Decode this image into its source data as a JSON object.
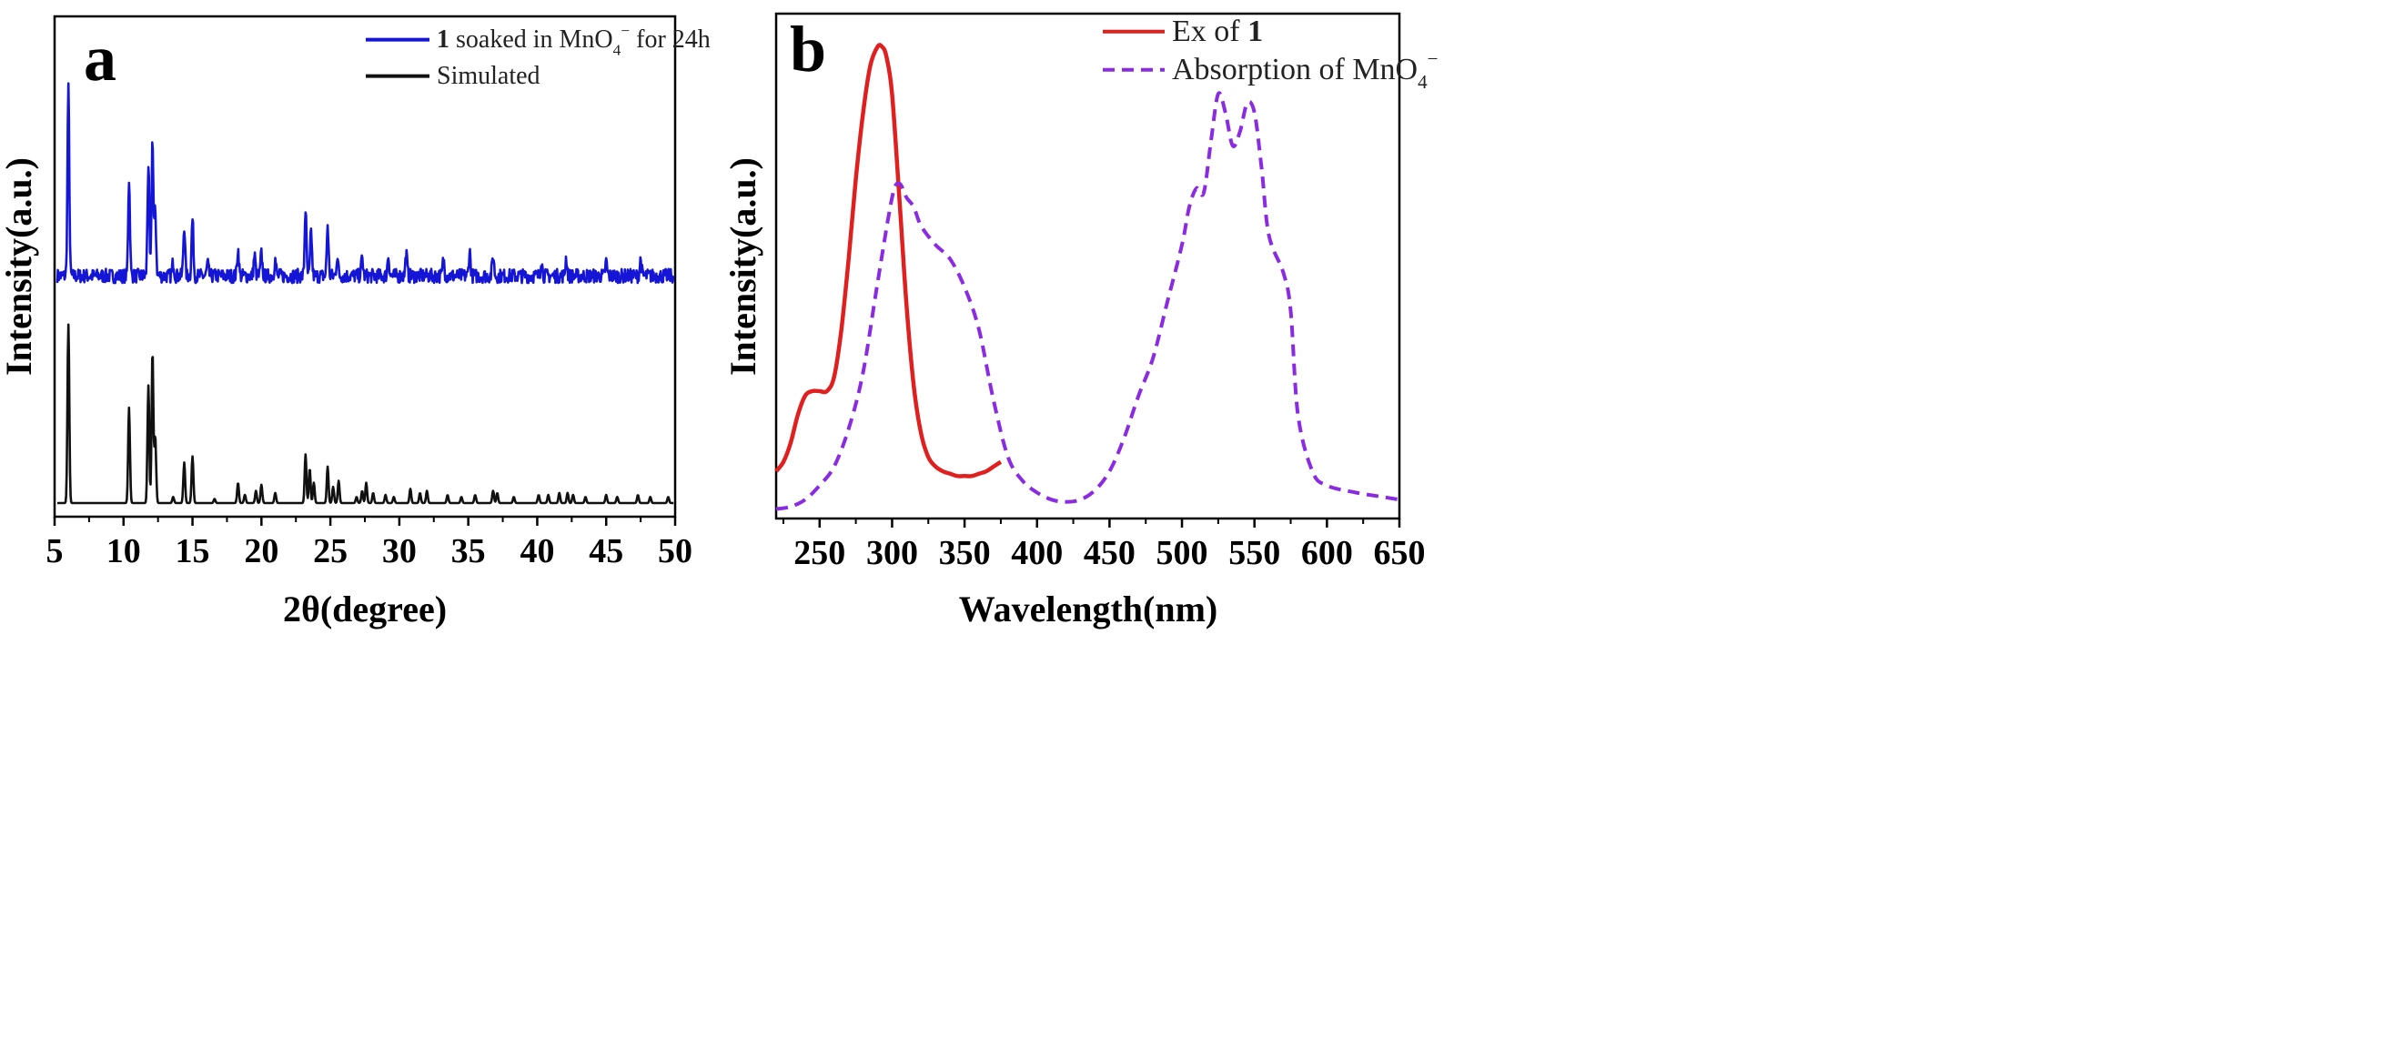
{
  "chart_data": [
    {
      "type": "line",
      "panel_label": "a",
      "title": "",
      "xlabel": "2θ(degree)",
      "ylabel": "Intensity(a.u.)",
      "xlim": [
        5,
        50
      ],
      "ylim": [
        0,
        2.4
      ],
      "x_ticks": [
        5,
        10,
        15,
        20,
        25,
        30,
        35,
        40,
        45,
        50
      ],
      "legend_position": "top-right",
      "series": [
        {
          "name": "1 soaked in MnO4− for 24h",
          "legend_bold": "1",
          "legend_text": " soaked in MnO",
          "legend_sub": "4",
          "legend_sup": "−",
          "legend_tail": " for 24h",
          "color": "#1515d6",
          "style": "solid",
          "offset": 1.12,
          "noise": 0.035,
          "peaks": [
            [
              6.0,
              0.92
            ],
            [
              10.4,
              0.48
            ],
            [
              11.8,
              0.55
            ],
            [
              12.1,
              0.68
            ],
            [
              12.3,
              0.32
            ],
            [
              13.6,
              0.07
            ],
            [
              14.4,
              0.25
            ],
            [
              15.0,
              0.28
            ],
            [
              16.1,
              0.06
            ],
            [
              18.3,
              0.13
            ],
            [
              19.5,
              0.1
            ],
            [
              20.0,
              0.11
            ],
            [
              21.0,
              0.08
            ],
            [
              23.2,
              0.33
            ],
            [
              23.6,
              0.22
            ],
            [
              24.8,
              0.25
            ],
            [
              25.5,
              0.1
            ],
            [
              27.3,
              0.09
            ],
            [
              29.2,
              0.1
            ],
            [
              30.5,
              0.11
            ],
            [
              33.2,
              0.08
            ],
            [
              35.1,
              0.12
            ],
            [
              36.8,
              0.1
            ],
            [
              40.3,
              0.08
            ],
            [
              42.1,
              0.09
            ],
            [
              45.0,
              0.07
            ],
            [
              47.5,
              0.08
            ]
          ]
        },
        {
          "name": "Simulated",
          "legend_bold": "",
          "legend_text": "Simulated",
          "legend_sub": "",
          "legend_sup": "",
          "legend_tail": "",
          "color": "#111111",
          "style": "solid",
          "offset": 0.0,
          "noise": 0.0,
          "peaks": [
            [
              6.0,
              0.88
            ],
            [
              10.4,
              0.47
            ],
            [
              11.8,
              0.58
            ],
            [
              12.1,
              0.75
            ],
            [
              12.3,
              0.33
            ],
            [
              13.6,
              0.03
            ],
            [
              14.4,
              0.2
            ],
            [
              15.0,
              0.23
            ],
            [
              16.6,
              0.02
            ],
            [
              18.3,
              0.1
            ],
            [
              18.8,
              0.04
            ],
            [
              19.6,
              0.06
            ],
            [
              20.0,
              0.09
            ],
            [
              21.0,
              0.05
            ],
            [
              23.2,
              0.24
            ],
            [
              23.5,
              0.17
            ],
            [
              23.8,
              0.1
            ],
            [
              24.8,
              0.18
            ],
            [
              25.2,
              0.08
            ],
            [
              25.6,
              0.11
            ],
            [
              26.9,
              0.03
            ],
            [
              27.3,
              0.06
            ],
            [
              27.6,
              0.1
            ],
            [
              28.1,
              0.05
            ],
            [
              29.0,
              0.04
            ],
            [
              29.6,
              0.03
            ],
            [
              30.8,
              0.07
            ],
            [
              31.5,
              0.05
            ],
            [
              32.0,
              0.06
            ],
            [
              33.5,
              0.04
            ],
            [
              34.5,
              0.03
            ],
            [
              35.5,
              0.04
            ],
            [
              36.8,
              0.06
            ],
            [
              37.1,
              0.05
            ],
            [
              38.3,
              0.03
            ],
            [
              40.1,
              0.04
            ],
            [
              40.8,
              0.04
            ],
            [
              41.6,
              0.05
            ],
            [
              42.2,
              0.05
            ],
            [
              42.6,
              0.04
            ],
            [
              43.5,
              0.03
            ],
            [
              45.0,
              0.04
            ],
            [
              45.8,
              0.03
            ],
            [
              47.3,
              0.04
            ],
            [
              48.2,
              0.03
            ],
            [
              49.5,
              0.03
            ]
          ]
        }
      ]
    },
    {
      "type": "line",
      "panel_label": "b",
      "title": "",
      "xlabel": "Wavelength(nm)",
      "ylabel": "Intensity(a.u.)",
      "xlim": [
        220,
        650
      ],
      "ylim": [
        0,
        1.07
      ],
      "x_ticks": [
        250,
        300,
        350,
        400,
        450,
        500,
        550,
        600,
        650
      ],
      "legend_position": "top-right",
      "series": [
        {
          "name": "Ex of 1",
          "legend_bold": "1",
          "legend_text": "Ex of ",
          "legend_sub": "",
          "legend_sup": "",
          "legend_tail": "",
          "color": "#e01f1f",
          "style": "solid",
          "x": [
            220,
            225,
            230,
            235,
            240,
            245,
            250,
            255,
            260,
            265,
            270,
            275,
            280,
            285,
            290,
            293,
            296,
            300,
            305,
            310,
            315,
            320,
            325,
            330,
            335,
            340,
            345,
            350,
            355,
            360,
            365,
            370,
            375
          ],
          "y": [
            0.1,
            0.12,
            0.16,
            0.22,
            0.26,
            0.27,
            0.27,
            0.27,
            0.3,
            0.4,
            0.55,
            0.72,
            0.86,
            0.96,
            1.0,
            1.0,
            0.98,
            0.9,
            0.68,
            0.45,
            0.28,
            0.18,
            0.13,
            0.11,
            0.1,
            0.095,
            0.09,
            0.09,
            0.09,
            0.095,
            0.1,
            0.11,
            0.12
          ]
        },
        {
          "name": "Absorption of MnO4−",
          "legend_bold": "",
          "legend_text": "Absorption of MnO",
          "legend_sub": "4",
          "legend_sup": "−",
          "legend_tail": "",
          "color": "#8a2be2",
          "style": "dashed",
          "x": [
            220,
            230,
            240,
            250,
            260,
            270,
            280,
            290,
            300,
            305,
            310,
            315,
            320,
            330,
            340,
            350,
            360,
            370,
            380,
            390,
            400,
            410,
            420,
            430,
            440,
            450,
            460,
            470,
            480,
            490,
            500,
            505,
            510,
            515,
            520,
            525,
            530,
            535,
            540,
            545,
            550,
            555,
            560,
            570,
            575,
            580,
            590,
            600,
            620,
            640,
            650
          ],
          "y": [
            0.02,
            0.025,
            0.04,
            0.07,
            0.11,
            0.19,
            0.31,
            0.5,
            0.68,
            0.71,
            0.68,
            0.66,
            0.62,
            0.58,
            0.55,
            0.49,
            0.4,
            0.25,
            0.13,
            0.08,
            0.055,
            0.04,
            0.035,
            0.04,
            0.06,
            0.1,
            0.17,
            0.26,
            0.34,
            0.46,
            0.58,
            0.66,
            0.7,
            0.69,
            0.8,
            0.9,
            0.86,
            0.79,
            0.82,
            0.88,
            0.86,
            0.74,
            0.6,
            0.52,
            0.44,
            0.22,
            0.1,
            0.07,
            0.055,
            0.045,
            0.04
          ]
        }
      ]
    }
  ]
}
